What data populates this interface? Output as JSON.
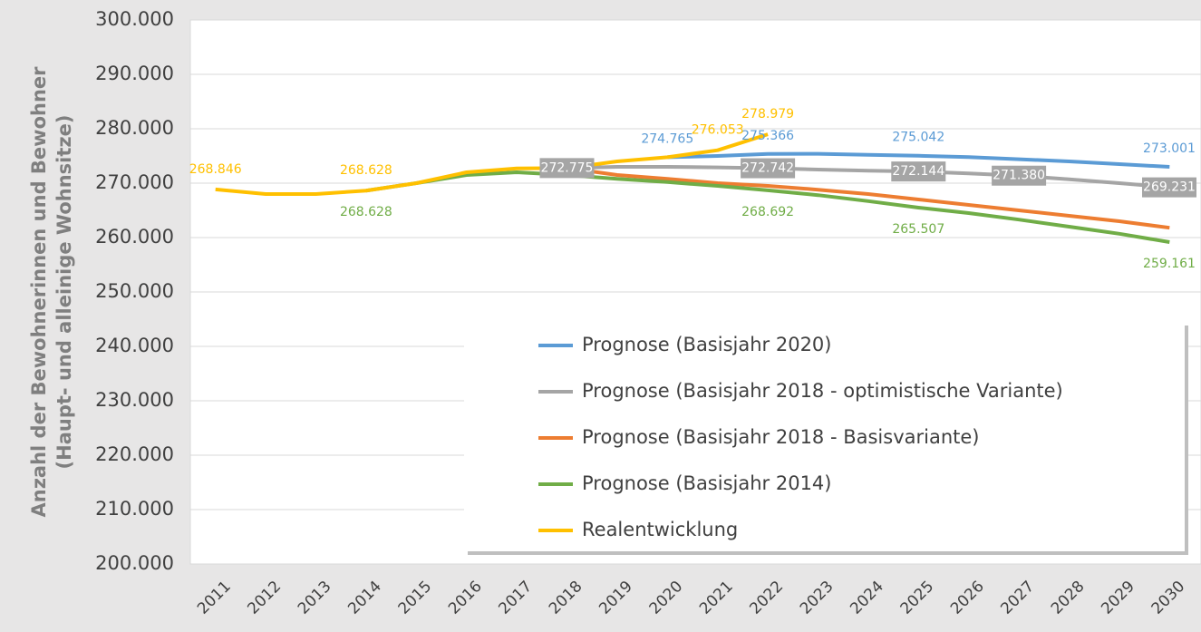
{
  "chart_data": {
    "type": "line",
    "ylabel": [
      "Anzahl der Bewohnerinnen und Bewohner",
      "(Haupt- und alleinige Wohnsitze)"
    ],
    "categories": [
      "2011",
      "2012",
      "2013",
      "2014",
      "2015",
      "2016",
      "2017",
      "2018",
      "2019",
      "2020",
      "2021",
      "2022",
      "2023",
      "2024",
      "2025",
      "2026",
      "2027",
      "2028",
      "2029",
      "2030"
    ],
    "ylim": [
      200000,
      300000
    ],
    "yticks": [
      {
        "value": 200000,
        "label": "200.000"
      },
      {
        "value": 210000,
        "label": "210.000"
      },
      {
        "value": 220000,
        "label": "220.000"
      },
      {
        "value": 230000,
        "label": "230.000"
      },
      {
        "value": 240000,
        "label": "240.000"
      },
      {
        "value": 250000,
        "label": "250.000"
      },
      {
        "value": 260000,
        "label": "260.000"
      },
      {
        "value": 270000,
        "label": "270.000"
      },
      {
        "value": 280000,
        "label": "280.000"
      },
      {
        "value": 290000,
        "label": "290.000"
      },
      {
        "value": 300000,
        "label": "300.000"
      }
    ],
    "grid": true,
    "series": [
      {
        "name": "Prognose (Basisjahr 2020)",
        "color": "#5b9bd5",
        "values": [
          null,
          null,
          null,
          null,
          null,
          null,
          null,
          null,
          null,
          274765,
          275000,
          275366,
          275400,
          275200,
          275042,
          274800,
          274400,
          274000,
          273500,
          273001
        ],
        "value_labels": [
          null,
          null,
          null,
          null,
          null,
          null,
          null,
          null,
          null,
          "274.765",
          null,
          "275.366",
          null,
          null,
          "275.042",
          null,
          null,
          null,
          null,
          "273.001"
        ]
      },
      {
        "name": "Prognose (Basisjahr 2018 - optimistische Variante)",
        "color": "#a5a5a5",
        "values": [
          null,
          null,
          null,
          null,
          null,
          null,
          null,
          272775,
          273000,
          273000,
          272900,
          272742,
          272500,
          272300,
          272144,
          271800,
          271380,
          270700,
          270000,
          269231
        ],
        "value_labels": [
          null,
          null,
          null,
          null,
          null,
          null,
          null,
          "272.775",
          null,
          null,
          null,
          "272.742",
          null,
          null,
          "272.144",
          null,
          "271.380",
          null,
          null,
          "269.231"
        ]
      },
      {
        "name": "Prognose (Basisjahr 2018 - Basisvariante)",
        "color": "#ed7d31",
        "values": [
          null,
          null,
          null,
          null,
          null,
          null,
          null,
          272775,
          271500,
          270800,
          270000,
          269500,
          268800,
          268000,
          267000,
          266000,
          265000,
          264000,
          263000,
          261800
        ]
      },
      {
        "name": "Prognose (Basisjahr 2014)",
        "color": "#70ad47",
        "values": [
          null,
          null,
          null,
          268628,
          270000,
          271500,
          272000,
          271500,
          270800,
          270200,
          269500,
          268692,
          267800,
          266700,
          265507,
          264500,
          263300,
          262000,
          260700,
          259161
        ],
        "value_labels": [
          null,
          null,
          null,
          "268.628",
          null,
          null,
          null,
          null,
          null,
          null,
          null,
          "268.692",
          null,
          null,
          "265.507",
          null,
          null,
          null,
          null,
          "259.161"
        ]
      },
      {
        "name": "Realentwicklung",
        "color": "#ffc000",
        "values": [
          268846,
          268000,
          268000,
          268628,
          270000,
          272000,
          272700,
          272775,
          274000,
          274765,
          276053,
          278979,
          null,
          null,
          null,
          null,
          null,
          null,
          null,
          null
        ],
        "value_labels": [
          "268.846",
          null,
          null,
          "268.628",
          null,
          null,
          null,
          null,
          null,
          null,
          "276.053",
          "278.979",
          null,
          null,
          null,
          null,
          null,
          null,
          null,
          null
        ]
      }
    ]
  }
}
